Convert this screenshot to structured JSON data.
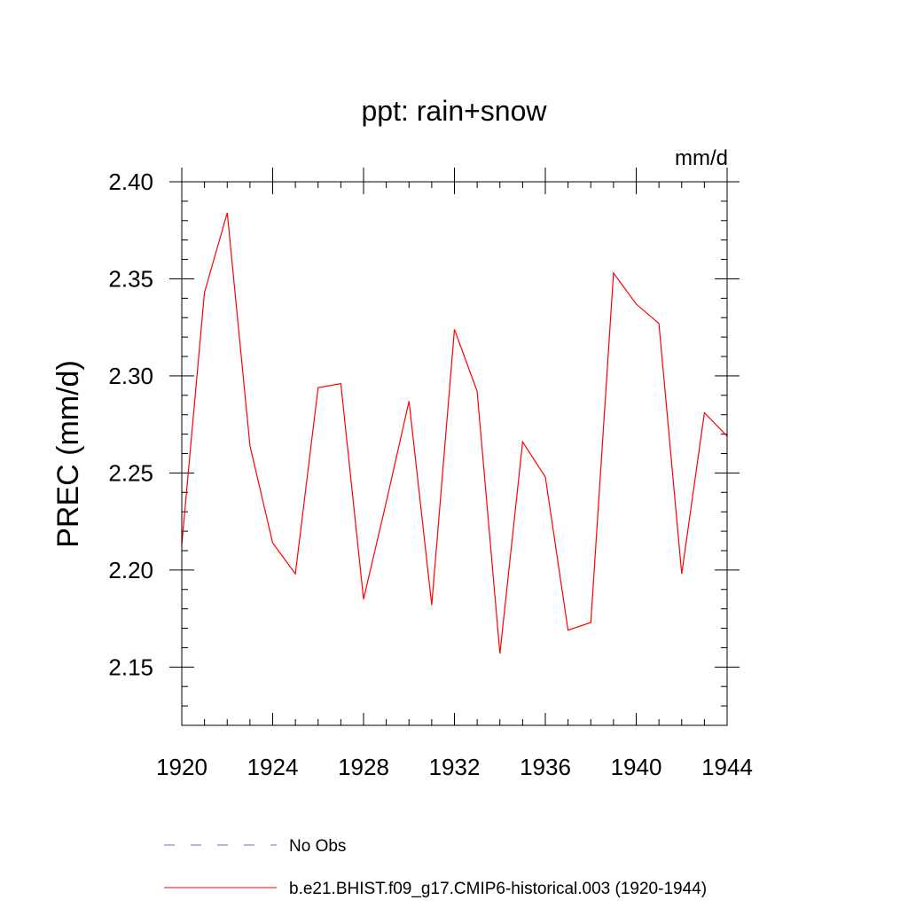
{
  "chart_data": {
    "type": "line",
    "title": "ppt: rain+snow",
    "units": "mm/d",
    "ylabel": "PREC  (mm/d)",
    "xlabel": "",
    "xlim": [
      1920,
      1944
    ],
    "ylim": [
      2.12,
      2.4
    ],
    "x_ticks": [
      1920,
      1924,
      1928,
      1932,
      1936,
      1940,
      1944
    ],
    "y_ticks": [
      2.15,
      2.2,
      2.25,
      2.3,
      2.35,
      2.4
    ],
    "grid": false,
    "series": [
      {
        "name": "b.e21.BHIST.f09_g17.CMIP6-historical.003 (1920-1944)",
        "color": "#ff0000",
        "style": "solid",
        "x": [
          1920,
          1921,
          1922,
          1923,
          1924,
          1925,
          1926,
          1927,
          1928,
          1929,
          1930,
          1931,
          1932,
          1933,
          1934,
          1935,
          1936,
          1937,
          1938,
          1939,
          1940,
          1941,
          1942,
          1943,
          1944
        ],
        "y": [
          2.213,
          2.343,
          2.384,
          2.264,
          2.214,
          2.198,
          2.294,
          2.296,
          2.185,
          2.235,
          2.287,
          2.182,
          2.324,
          2.292,
          2.157,
          2.266,
          2.248,
          2.169,
          2.173,
          2.353,
          2.337,
          2.327,
          2.198,
          2.281,
          2.269
        ]
      }
    ],
    "legend": {
      "placement": "bottom",
      "entries": [
        {
          "label": "No Obs",
          "color": "#6a6acd",
          "style": "dashed"
        },
        {
          "label": "b.e21.BHIST.f09_g17.CMIP6-historical.003 (1920-1944)",
          "color": "#ff0000",
          "style": "solid"
        }
      ]
    }
  }
}
